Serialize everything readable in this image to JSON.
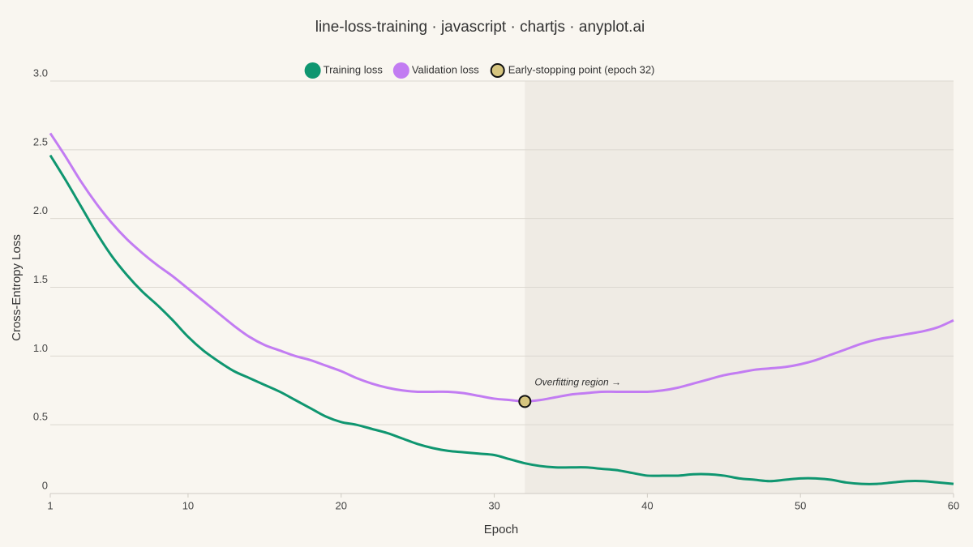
{
  "chart_data": {
    "type": "line",
    "title": "line-loss-training · javascript · chartjs · anyplot.ai",
    "x_label": "Epoch",
    "y_label": "Cross-Entropy Loss",
    "x": [
      1,
      2,
      3,
      4,
      5,
      6,
      7,
      8,
      9,
      10,
      11,
      12,
      13,
      14,
      15,
      16,
      17,
      18,
      19,
      20,
      21,
      22,
      23,
      24,
      25,
      26,
      27,
      28,
      29,
      30,
      31,
      32,
      33,
      34,
      35,
      36,
      37,
      38,
      39,
      40,
      41,
      42,
      43,
      44,
      45,
      46,
      47,
      48,
      49,
      50,
      51,
      52,
      53,
      54,
      55,
      56,
      57,
      58,
      59,
      60
    ],
    "series": [
      {
        "name": "Training loss",
        "color": "#0f9670",
        "values": [
          2.46,
          2.28,
          2.09,
          1.9,
          1.73,
          1.59,
          1.47,
          1.37,
          1.26,
          1.14,
          1.04,
          0.96,
          0.89,
          0.84,
          0.79,
          0.74,
          0.68,
          0.62,
          0.56,
          0.52,
          0.5,
          0.47,
          0.44,
          0.4,
          0.36,
          0.33,
          0.31,
          0.3,
          0.29,
          0.28,
          0.25,
          0.22,
          0.2,
          0.19,
          0.19,
          0.19,
          0.18,
          0.17,
          0.15,
          0.13,
          0.13,
          0.13,
          0.14,
          0.14,
          0.13,
          0.11,
          0.1,
          0.09,
          0.1,
          0.11,
          0.11,
          0.1,
          0.08,
          0.07,
          0.07,
          0.08,
          0.09,
          0.09,
          0.08,
          0.07
        ]
      },
      {
        "name": "Validation loss",
        "color": "#c27cf2",
        "values": [
          2.62,
          2.45,
          2.27,
          2.11,
          1.97,
          1.85,
          1.75,
          1.66,
          1.58,
          1.49,
          1.4,
          1.31,
          1.22,
          1.14,
          1.08,
          1.04,
          1.0,
          0.97,
          0.93,
          0.89,
          0.84,
          0.8,
          0.77,
          0.75,
          0.74,
          0.74,
          0.74,
          0.73,
          0.71,
          0.69,
          0.68,
          0.67,
          0.68,
          0.7,
          0.72,
          0.73,
          0.74,
          0.74,
          0.74,
          0.74,
          0.75,
          0.77,
          0.8,
          0.83,
          0.86,
          0.88,
          0.9,
          0.91,
          0.92,
          0.94,
          0.97,
          1.01,
          1.05,
          1.09,
          1.12,
          1.14,
          1.16,
          1.18,
          1.21,
          1.26
        ]
      }
    ],
    "marker": {
      "name": "Early-stopping point (epoch 32)",
      "x": 32,
      "y": 0.67,
      "color": "#d6c57f"
    },
    "annotation": "Overfitting region →",
    "shade_color": "#efebe4",
    "xlim": [
      1,
      60
    ],
    "xticks": [
      1,
      10,
      20,
      30,
      40,
      50,
      60
    ],
    "ylim": [
      0,
      3
    ],
    "yticks": [
      0,
      0.5,
      {
        "value": 1,
        "label": "1.0"
      },
      1.5,
      {
        "value": 2,
        "label": "2.0"
      },
      2.5,
      {
        "value": 3,
        "label": "3.0"
      }
    ],
    "grid": true
  }
}
